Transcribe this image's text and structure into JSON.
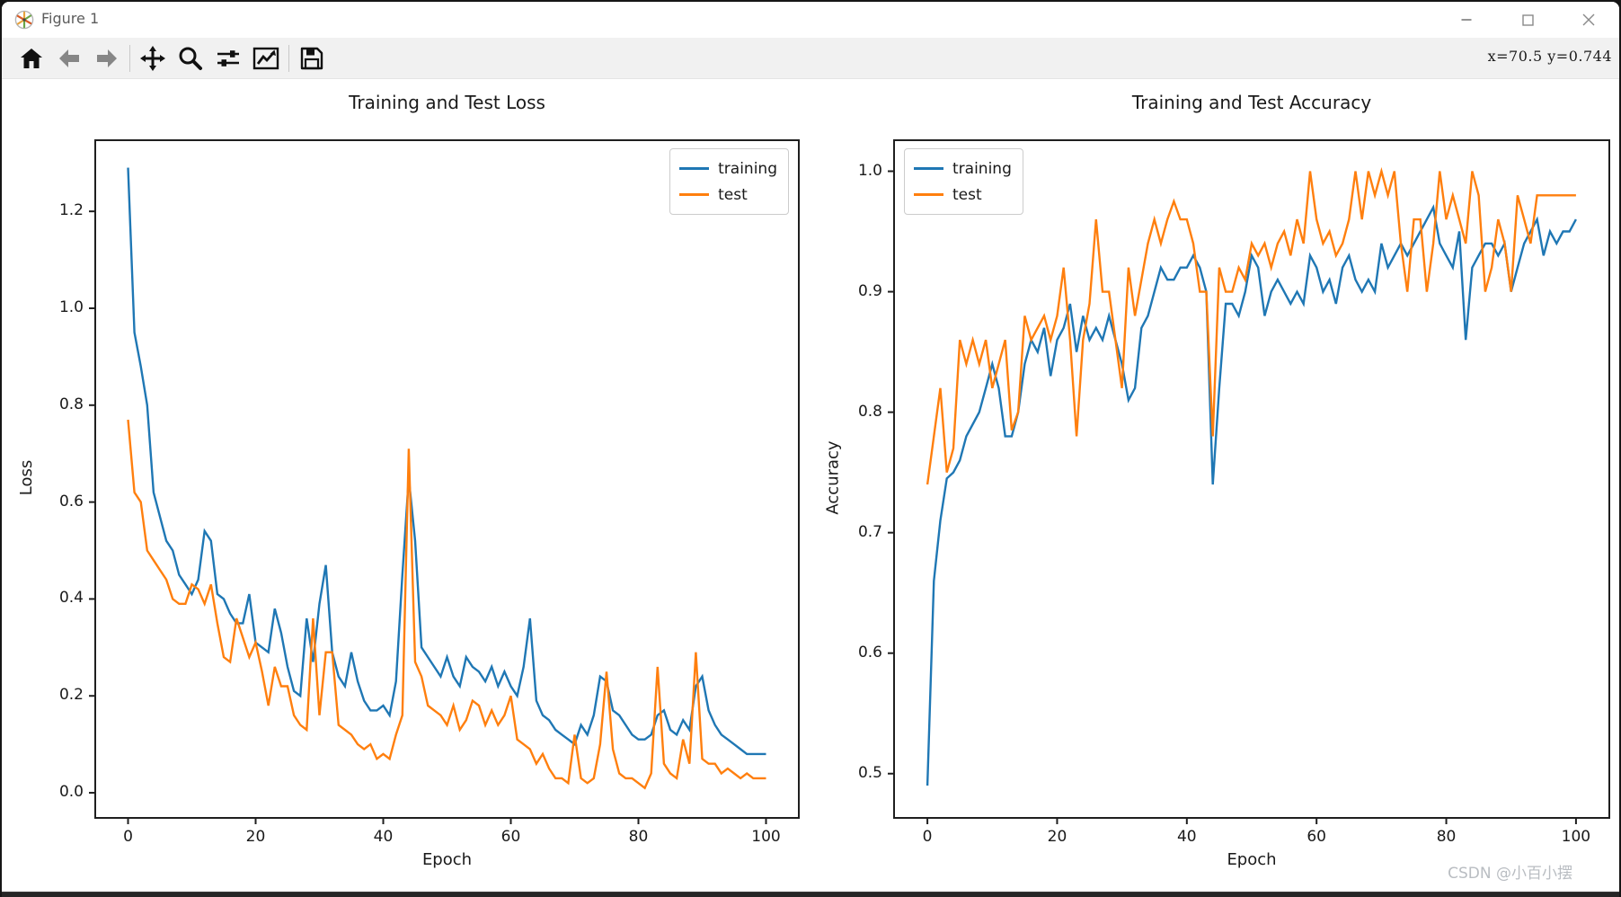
{
  "window": {
    "title": "Figure 1",
    "controls": [
      "minimize",
      "maximize",
      "close"
    ]
  },
  "toolbar": {
    "buttons": [
      {
        "name": "home",
        "icon": "home-icon",
        "enabled": true
      },
      {
        "name": "back",
        "icon": "arrow-left-icon",
        "enabled": false
      },
      {
        "name": "forward",
        "icon": "arrow-right-icon",
        "enabled": false
      },
      {
        "name": "pan",
        "icon": "move-icon",
        "enabled": true
      },
      {
        "name": "zoom",
        "icon": "magnifier-icon",
        "enabled": true
      },
      {
        "name": "configure-subplots",
        "icon": "sliders-icon",
        "enabled": true
      },
      {
        "name": "customize",
        "icon": "chart-options-icon",
        "enabled": true
      },
      {
        "name": "save",
        "icon": "floppy-icon",
        "enabled": true
      }
    ],
    "coords_readout": "x=70.5  y=0.744"
  },
  "watermark": "CSDN @小百小摆",
  "colors": {
    "training": "#1f77b4",
    "test": "#ff7f0e"
  },
  "chart_data": [
    {
      "type": "line",
      "title": "Training and Test Loss",
      "xlabel": "Epoch",
      "ylabel": "Loss",
      "xlim": [
        -5,
        105
      ],
      "ylim": [
        -0.05,
        1.345
      ],
      "xticks": [
        0,
        20,
        40,
        60,
        80,
        100
      ],
      "xtick_labels": [
        "0",
        "20",
        "40",
        "60",
        "80",
        "100"
      ],
      "yticks": [
        0.0,
        0.2,
        0.4,
        0.6,
        0.8,
        1.0,
        1.2
      ],
      "ytick_labels": [
        "0.0",
        "0.2",
        "0.4",
        "0.6",
        "0.8",
        "1.0",
        "1.2"
      ],
      "grid": false,
      "legend_position": "upper right",
      "x": [
        0,
        1,
        2,
        3,
        4,
        5,
        6,
        7,
        8,
        9,
        10,
        11,
        12,
        13,
        14,
        15,
        16,
        17,
        18,
        19,
        20,
        21,
        22,
        23,
        24,
        25,
        26,
        27,
        28,
        29,
        30,
        31,
        32,
        33,
        34,
        35,
        36,
        37,
        38,
        39,
        40,
        41,
        42,
        43,
        44,
        45,
        46,
        47,
        48,
        49,
        50,
        51,
        52,
        53,
        54,
        55,
        56,
        57,
        58,
        59,
        60,
        61,
        62,
        63,
        64,
        65,
        66,
        67,
        68,
        69,
        70,
        71,
        72,
        73,
        74,
        75,
        76,
        77,
        78,
        79,
        80,
        81,
        82,
        83,
        84,
        85,
        86,
        87,
        88,
        89,
        90,
        91,
        92,
        93,
        94,
        95,
        96,
        97,
        98,
        99,
        100
      ],
      "series": [
        {
          "name": "training",
          "color": "#1f77b4",
          "values": [
            1.29,
            0.95,
            0.88,
            0.8,
            0.62,
            0.57,
            0.52,
            0.5,
            0.45,
            0.43,
            0.41,
            0.44,
            0.54,
            0.52,
            0.41,
            0.4,
            0.37,
            0.35,
            0.35,
            0.41,
            0.31,
            0.3,
            0.29,
            0.38,
            0.33,
            0.26,
            0.21,
            0.2,
            0.36,
            0.27,
            0.39,
            0.47,
            0.29,
            0.24,
            0.22,
            0.29,
            0.23,
            0.19,
            0.17,
            0.17,
            0.18,
            0.16,
            0.23,
            0.45,
            0.65,
            0.52,
            0.3,
            0.28,
            0.26,
            0.24,
            0.28,
            0.24,
            0.22,
            0.28,
            0.26,
            0.25,
            0.23,
            0.26,
            0.22,
            0.25,
            0.22,
            0.2,
            0.26,
            0.36,
            0.19,
            0.16,
            0.15,
            0.13,
            0.12,
            0.11,
            0.1,
            0.14,
            0.12,
            0.16,
            0.24,
            0.23,
            0.17,
            0.16,
            0.14,
            0.12,
            0.11,
            0.11,
            0.12,
            0.16,
            0.17,
            0.13,
            0.12,
            0.15,
            0.13,
            0.22,
            0.24,
            0.17,
            0.14,
            0.12,
            0.11,
            0.1,
            0.09,
            0.08,
            0.08,
            0.08,
            0.08
          ]
        },
        {
          "name": "test",
          "color": "#ff7f0e",
          "values": [
            0.77,
            0.62,
            0.6,
            0.5,
            0.48,
            0.46,
            0.44,
            0.4,
            0.39,
            0.39,
            0.43,
            0.42,
            0.39,
            0.43,
            0.35,
            0.28,
            0.27,
            0.36,
            0.32,
            0.28,
            0.31,
            0.25,
            0.18,
            0.26,
            0.22,
            0.22,
            0.16,
            0.14,
            0.13,
            0.36,
            0.16,
            0.29,
            0.29,
            0.14,
            0.13,
            0.12,
            0.1,
            0.09,
            0.1,
            0.07,
            0.08,
            0.07,
            0.12,
            0.16,
            0.71,
            0.27,
            0.24,
            0.18,
            0.17,
            0.16,
            0.14,
            0.18,
            0.13,
            0.15,
            0.19,
            0.18,
            0.14,
            0.17,
            0.14,
            0.16,
            0.2,
            0.11,
            0.1,
            0.09,
            0.06,
            0.08,
            0.05,
            0.03,
            0.03,
            0.02,
            0.12,
            0.03,
            0.02,
            0.03,
            0.1,
            0.25,
            0.09,
            0.04,
            0.03,
            0.03,
            0.02,
            0.01,
            0.04,
            0.26,
            0.06,
            0.04,
            0.03,
            0.11,
            0.06,
            0.29,
            0.07,
            0.06,
            0.06,
            0.04,
            0.05,
            0.04,
            0.03,
            0.04,
            0.03,
            0.03,
            0.03
          ]
        }
      ]
    },
    {
      "type": "line",
      "title": "Training and Test Accuracy",
      "xlabel": "Epoch",
      "ylabel": "Accuracy",
      "xlim": [
        -5,
        105
      ],
      "ylim": [
        0.464,
        1.025
      ],
      "xticks": [
        0,
        20,
        40,
        60,
        80,
        100
      ],
      "xtick_labels": [
        "0",
        "20",
        "40",
        "60",
        "80",
        "100"
      ],
      "yticks": [
        0.5,
        0.6,
        0.7,
        0.8,
        0.9,
        1.0
      ],
      "ytick_labels": [
        "0.5",
        "0.6",
        "0.7",
        "0.8",
        "0.9",
        "1.0"
      ],
      "grid": false,
      "legend_position": "upper left",
      "x": [
        0,
        1,
        2,
        3,
        4,
        5,
        6,
        7,
        8,
        9,
        10,
        11,
        12,
        13,
        14,
        15,
        16,
        17,
        18,
        19,
        20,
        21,
        22,
        23,
        24,
        25,
        26,
        27,
        28,
        29,
        30,
        31,
        32,
        33,
        34,
        35,
        36,
        37,
        38,
        39,
        40,
        41,
        42,
        43,
        44,
        45,
        46,
        47,
        48,
        49,
        50,
        51,
        52,
        53,
        54,
        55,
        56,
        57,
        58,
        59,
        60,
        61,
        62,
        63,
        64,
        65,
        66,
        67,
        68,
        69,
        70,
        71,
        72,
        73,
        74,
        75,
        76,
        77,
        78,
        79,
        80,
        81,
        82,
        83,
        84,
        85,
        86,
        87,
        88,
        89,
        90,
        91,
        92,
        93,
        94,
        95,
        96,
        97,
        98,
        99,
        100
      ],
      "series": [
        {
          "name": "training",
          "color": "#1f77b4",
          "values": [
            0.49,
            0.66,
            0.71,
            0.745,
            0.75,
            0.76,
            0.78,
            0.79,
            0.8,
            0.82,
            0.84,
            0.82,
            0.78,
            0.78,
            0.8,
            0.84,
            0.86,
            0.85,
            0.87,
            0.83,
            0.86,
            0.87,
            0.89,
            0.85,
            0.88,
            0.86,
            0.87,
            0.86,
            0.88,
            0.86,
            0.84,
            0.81,
            0.82,
            0.87,
            0.88,
            0.9,
            0.92,
            0.91,
            0.91,
            0.92,
            0.92,
            0.93,
            0.92,
            0.9,
            0.74,
            0.82,
            0.89,
            0.89,
            0.88,
            0.9,
            0.93,
            0.92,
            0.88,
            0.9,
            0.91,
            0.9,
            0.89,
            0.9,
            0.89,
            0.93,
            0.92,
            0.9,
            0.91,
            0.89,
            0.92,
            0.93,
            0.91,
            0.9,
            0.91,
            0.9,
            0.94,
            0.92,
            0.93,
            0.94,
            0.93,
            0.94,
            0.95,
            0.96,
            0.97,
            0.94,
            0.93,
            0.92,
            0.95,
            0.86,
            0.92,
            0.93,
            0.94,
            0.94,
            0.93,
            0.94,
            0.9,
            0.92,
            0.94,
            0.95,
            0.96,
            0.93,
            0.95,
            0.94,
            0.95,
            0.95,
            0.96
          ]
        },
        {
          "name": "test",
          "color": "#ff7f0e",
          "values": [
            0.74,
            0.78,
            0.82,
            0.75,
            0.77,
            0.86,
            0.84,
            0.86,
            0.84,
            0.86,
            0.82,
            0.84,
            0.86,
            0.785,
            0.8,
            0.88,
            0.86,
            0.87,
            0.88,
            0.86,
            0.88,
            0.92,
            0.86,
            0.78,
            0.86,
            0.89,
            0.96,
            0.9,
            0.9,
            0.86,
            0.82,
            0.92,
            0.88,
            0.91,
            0.94,
            0.96,
            0.94,
            0.96,
            0.975,
            0.96,
            0.96,
            0.94,
            0.9,
            0.9,
            0.78,
            0.92,
            0.9,
            0.9,
            0.92,
            0.91,
            0.94,
            0.93,
            0.94,
            0.92,
            0.94,
            0.95,
            0.93,
            0.96,
            0.94,
            1.0,
            0.96,
            0.94,
            0.95,
            0.93,
            0.94,
            0.96,
            1.0,
            0.96,
            1.0,
            0.98,
            1.0,
            0.98,
            1.0,
            0.94,
            0.9,
            0.96,
            0.96,
            0.9,
            0.94,
            1.0,
            0.96,
            0.98,
            0.96,
            0.94,
            1.0,
            0.98,
            0.9,
            0.92,
            0.96,
            0.94,
            0.9,
            0.98,
            0.96,
            0.94,
            0.98,
            0.98,
            0.98,
            0.98,
            0.98,
            0.98,
            0.98
          ]
        }
      ]
    }
  ]
}
